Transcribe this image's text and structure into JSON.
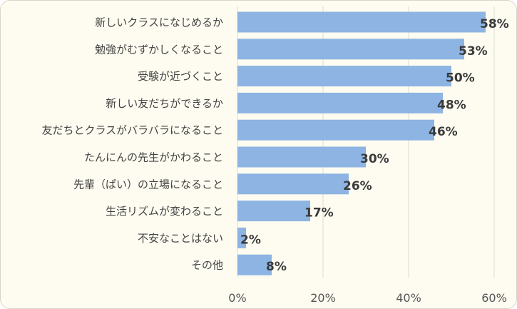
{
  "chart_data": {
    "type": "bar",
    "orientation": "horizontal",
    "categories": [
      "新しいクラスになじめるか",
      "勉強がむずかしくなること",
      "受験が近づくこと",
      "新しい友だちができるか",
      "友だちとクラスがバラバラになること",
      "たんにんの先生がかわること",
      "先輩（ぱい）の立場になること",
      "生活リズムが変わること",
      "不安なことはない",
      "その他"
    ],
    "values": [
      58,
      53,
      50,
      48,
      46,
      30,
      26,
      17,
      2,
      8
    ],
    "value_labels": [
      "58%",
      "53%",
      "50%",
      "48%",
      "46%",
      "30%",
      "26%",
      "17%",
      "2%",
      "8%"
    ],
    "x_ticks": [
      0,
      20,
      40,
      60
    ],
    "x_tick_labels": [
      "0%",
      "20%",
      "40%",
      "60%"
    ],
    "xlim": [
      0,
      60
    ],
    "grid": true,
    "bar_color": "#8db4e2"
  }
}
